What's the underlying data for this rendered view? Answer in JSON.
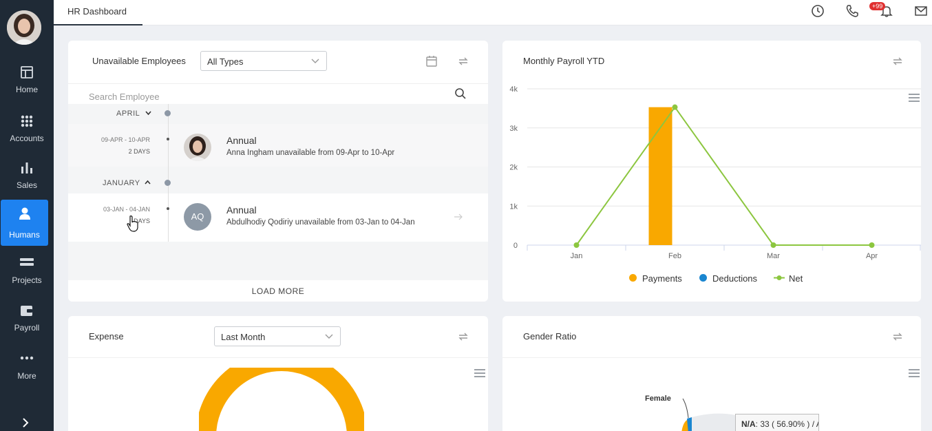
{
  "sidebar": {
    "items": [
      {
        "label": "Home",
        "icon": "home-icon"
      },
      {
        "label": "Accounts",
        "icon": "grid-icon"
      },
      {
        "label": "Sales",
        "icon": "bar-chart-icon"
      },
      {
        "label": "Humans",
        "icon": "person-icon",
        "active": true
      },
      {
        "label": "Projects",
        "icon": "projects-icon"
      },
      {
        "label": "Payroll",
        "icon": "wallet-icon"
      },
      {
        "label": "More",
        "icon": "more-icon"
      }
    ]
  },
  "topbar": {
    "tab": "HR Dashboard",
    "notification_badge": "+99"
  },
  "unavailable": {
    "title": "Unavailable Employees",
    "filter_value": "All Types",
    "search_placeholder": "Search Employee",
    "load_more": "LOAD MORE",
    "groups": [
      {
        "month": "APRIL",
        "entries": [
          {
            "date": "09-APR - 10-APR",
            "days": "2 DAYS",
            "type": "Annual",
            "desc": "Anna Ingham unavailable from 09-Apr to 10-Apr"
          }
        ]
      },
      {
        "month": "JANUARY",
        "entries": [
          {
            "date": "03-JAN - 04-JAN",
            "days": "DAYS",
            "type": "Annual",
            "initials": "AQ",
            "desc": "Abdulhodiy Qodiriy unavailable from 03-Jan to 04-Jan"
          }
        ]
      }
    ]
  },
  "payroll": {
    "title": "Monthly Payroll YTD"
  },
  "chart_data": {
    "type": "bar",
    "categories": [
      "Jan",
      "Feb",
      "Mar",
      "Apr"
    ],
    "series": [
      {
        "name": "Payments",
        "type": "bar",
        "values": [
          0,
          3530,
          0,
          0
        ],
        "color": "#f9a800"
      },
      {
        "name": "Deductions",
        "type": "bar",
        "values": [
          0,
          0,
          0,
          0
        ],
        "color": "#1a86d0"
      },
      {
        "name": "Net",
        "type": "line",
        "values": [
          0,
          3530,
          0,
          0
        ],
        "color": "#8cc63f"
      }
    ],
    "y_ticks": [
      "0",
      "1k",
      "2k",
      "3k",
      "4k"
    ],
    "ylim": [
      0,
      4000
    ],
    "legend_position": "bottom",
    "grid": true
  },
  "expense": {
    "title": "Expense",
    "filter_value": "Last Month"
  },
  "gender": {
    "title": "Gender Ratio",
    "label_female": "Female",
    "tooltip_label": "N/A",
    "tooltip_value": ": 33 ( 56.90% ) / A"
  },
  "colors": {
    "sidebar_bg": "#1f2a36",
    "active": "#1e82f0",
    "payments": "#f9a800",
    "deductions": "#1a86d0",
    "net": "#8cc63f"
  }
}
